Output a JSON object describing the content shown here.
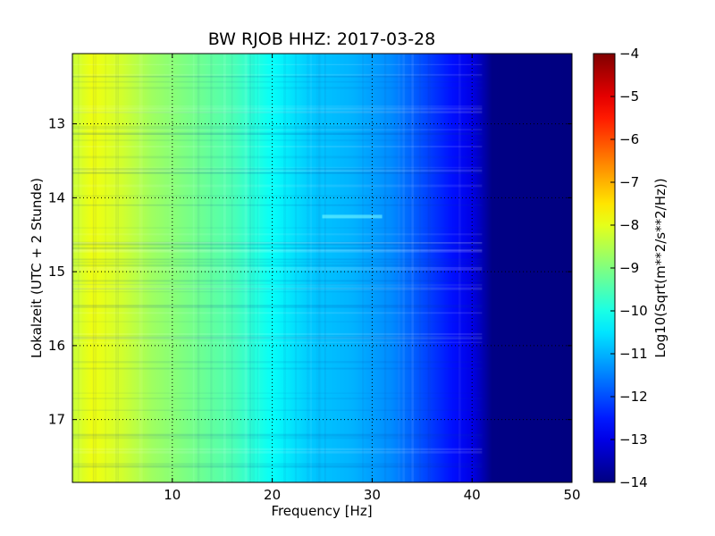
{
  "chart_data": {
    "type": "heatmap",
    "title": "BW RJOB HHZ: 2017-03-28",
    "xlabel": "Frequency [Hz]",
    "ylabel": "Lokalzeit (UTC + 2 Stunde)",
    "colorbar_label": "Log10(Sqrt(m**2/s**2/Hz))",
    "xlim": [
      0,
      50
    ],
    "ylim": [
      17.85,
      12.05
    ],
    "x_ticks": [
      10,
      20,
      30,
      40,
      50
    ],
    "x_tick_labels": [
      "10",
      "20",
      "30",
      "40",
      "50"
    ],
    "y_ticks": [
      13,
      14,
      15,
      16,
      17
    ],
    "y_tick_labels": [
      "13",
      "14",
      "15",
      "16",
      "17"
    ],
    "colorbar_range": [
      -14,
      -4
    ],
    "colorbar_ticks": [
      -4,
      -5,
      -6,
      -7,
      -8,
      -9,
      -10,
      -11,
      -12,
      -13,
      -14
    ],
    "colorbar_tick_labels": [
      "−4",
      "−5",
      "−6",
      "−7",
      "−8",
      "−9",
      "−10",
      "−11",
      "−12",
      "−13",
      "−14"
    ],
    "colormap": "jet",
    "grid": true,
    "profile": [
      {
        "f": 0,
        "v": -8.3
      },
      {
        "f": 2,
        "v": -7.9
      },
      {
        "f": 5,
        "v": -8.2
      },
      {
        "f": 8,
        "v": -8.7
      },
      {
        "f": 12,
        "v": -9.1
      },
      {
        "f": 16,
        "v": -9.5
      },
      {
        "f": 20,
        "v": -10.2
      },
      {
        "f": 24,
        "v": -10.8
      },
      {
        "f": 28,
        "v": -11.0
      },
      {
        "f": 32,
        "v": -11.4
      },
      {
        "f": 36,
        "v": -12.2
      },
      {
        "f": 38,
        "v": -12.6
      },
      {
        "f": 40,
        "v": -13.0
      },
      {
        "f": 42,
        "v": -13.95
      },
      {
        "f": 50,
        "v": -14.0
      }
    ]
  }
}
